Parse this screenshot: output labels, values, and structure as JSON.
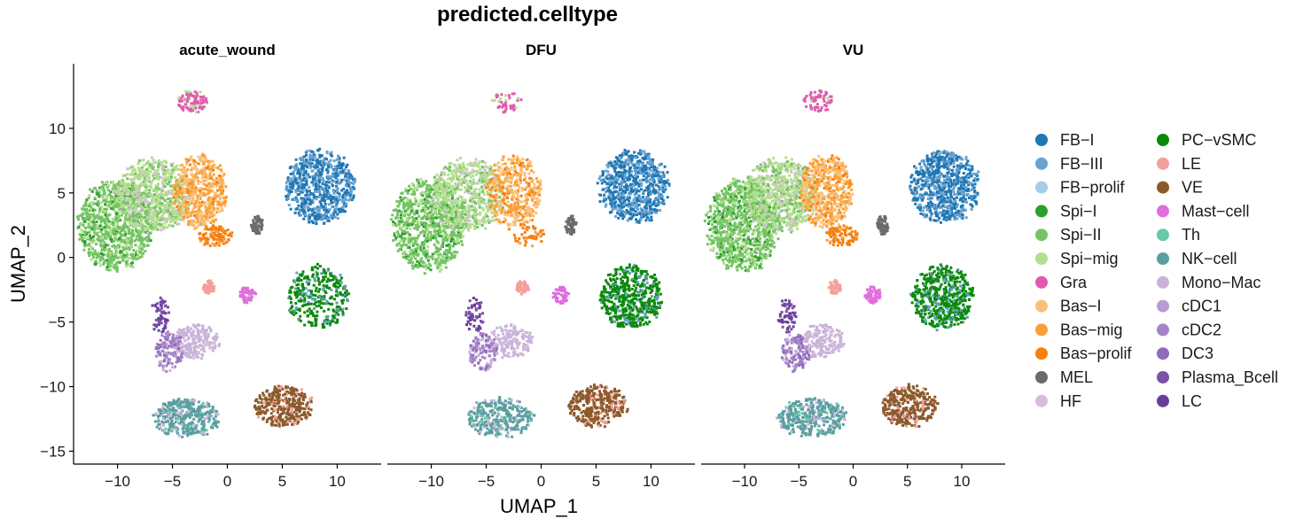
{
  "chart_data": {
    "type": "scatter",
    "title": "predicted.celltype",
    "xlabel": "UMAP_1",
    "ylabel": "UMAP_2",
    "xlim": [
      -14,
      14
    ],
    "ylim": [
      -16,
      15
    ],
    "x_ticks": [
      -10,
      -5,
      0,
      5,
      10
    ],
    "y_ticks": [
      -15,
      -10,
      -5,
      0,
      5,
      10
    ],
    "grid": false,
    "legend_position": "right",
    "facets": [
      "acute_wound",
      "DFU",
      "VU"
    ],
    "legend": [
      {
        "name": "FB−I",
        "color": "#1f77b4"
      },
      {
        "name": "FB−III",
        "color": "#6aa3d0"
      },
      {
        "name": "FB−prolif",
        "color": "#a6cde6"
      },
      {
        "name": "Spi−I",
        "color": "#2ca02c"
      },
      {
        "name": "Spi−II",
        "color": "#74c465"
      },
      {
        "name": "Spi−mig",
        "color": "#b3df8f"
      },
      {
        "name": "Gra",
        "color": "#e05ab0"
      },
      {
        "name": "Bas−I",
        "color": "#f9c07a"
      },
      {
        "name": "Bas−mig",
        "color": "#f9a035"
      },
      {
        "name": "Bas−prolif",
        "color": "#f57f11"
      },
      {
        "name": "MEL",
        "color": "#6b6b6b"
      },
      {
        "name": "HF",
        "color": "#d9bcdb"
      },
      {
        "name": "PC−vSMC",
        "color": "#0a8a0a"
      },
      {
        "name": "LE",
        "color": "#f4a09a"
      },
      {
        "name": "VE",
        "color": "#8b5a2b"
      },
      {
        "name": "Mast−cell",
        "color": "#df6edc"
      },
      {
        "name": "Th",
        "color": "#66c9a6"
      },
      {
        "name": "NK−cell",
        "color": "#5a9ea0"
      },
      {
        "name": "Mono−Mac",
        "color": "#c9b3d9"
      },
      {
        "name": "cDC1",
        "color": "#b89bd1"
      },
      {
        "name": "cDC2",
        "color": "#a583c8"
      },
      {
        "name": "DC3",
        "color": "#8f6bbb"
      },
      {
        "name": "Plasma_Bcell",
        "color": "#7a52aa"
      },
      {
        "name": "LC",
        "color": "#6a3d9a"
      }
    ],
    "clusters": [
      {
        "name": "FB−I",
        "center": [
          8.3,
          5.6
        ],
        "radius": [
          3.4,
          3.0
        ],
        "mix": [
          [
            "FB−I",
            0.6
          ],
          [
            "FB−III",
            0.4
          ]
        ],
        "density": [
          1.0,
          1.0,
          1.0
        ]
      },
      {
        "name": "Spi−II",
        "center": [
          -10.3,
          2.6
        ],
        "radius": [
          3.6,
          3.8
        ],
        "mix": [
          [
            "Spi−II",
            0.65
          ],
          [
            "Spi−I",
            0.15
          ],
          [
            "Spi−mig",
            0.2
          ]
        ],
        "density": [
          1.0,
          0.9,
          1.0
        ]
      },
      {
        "name": "Spi−mig",
        "center": [
          -6.8,
          4.9
        ],
        "radius": [
          3.6,
          3.0
        ],
        "mix": [
          [
            "Spi−mig",
            0.6
          ],
          [
            "Spi−II",
            0.25
          ],
          [
            "HF",
            0.15
          ]
        ],
        "density": [
          1.0,
          0.8,
          1.0
        ]
      },
      {
        "name": "Bas−I",
        "center": [
          -2.6,
          5.2
        ],
        "radius": [
          2.6,
          3.0
        ],
        "mix": [
          [
            "Bas−I",
            0.45
          ],
          [
            "Bas−mig",
            0.4
          ],
          [
            "Bas−prolif",
            0.15
          ]
        ],
        "density": [
          1.0,
          0.8,
          1.0
        ]
      },
      {
        "name": "Bas−prolif",
        "center": [
          -1.2,
          1.8
        ],
        "radius": [
          1.6,
          0.9
        ],
        "mix": [
          [
            "Bas−prolif",
            0.8
          ],
          [
            "Bas−mig",
            0.2
          ]
        ],
        "density": [
          1.0,
          0.5,
          0.9
        ]
      },
      {
        "name": "MEL",
        "center": [
          2.6,
          2.6
        ],
        "radius": [
          0.55,
          0.8
        ],
        "mix": [
          [
            "MEL",
            1.0
          ]
        ],
        "density": [
          1.0,
          1.0,
          1.0
        ]
      },
      {
        "name": "PC−vSMC",
        "center": [
          8.1,
          -3.0
        ],
        "radius": [
          3.0,
          2.6
        ],
        "mix": [
          [
            "PC−vSMC",
            0.75
          ],
          [
            "FB−III",
            0.1
          ],
          [
            "NK−cell",
            0.15
          ]
        ],
        "density": [
          0.6,
          1.0,
          1.0
        ]
      },
      {
        "name": "Gra",
        "center": [
          -3.3,
          12.2
        ],
        "radius": [
          1.5,
          0.9
        ],
        "mix": [
          [
            "Gra",
            0.8
          ],
          [
            "Spi−mig",
            0.2
          ]
        ],
        "density": [
          1.0,
          0.5,
          0.7
        ]
      },
      {
        "name": "LE",
        "center": [
          -1.8,
          -2.2
        ],
        "radius": [
          0.6,
          0.55
        ],
        "mix": [
          [
            "LE",
            1.0
          ]
        ],
        "density": [
          1.0,
          1.0,
          1.0
        ]
      },
      {
        "name": "Mast−cell",
        "center": [
          1.7,
          -2.8
        ],
        "radius": [
          0.8,
          0.75
        ],
        "mix": [
          [
            "Mast−cell",
            1.0
          ]
        ],
        "density": [
          1.0,
          1.0,
          1.0
        ]
      },
      {
        "name": "Mono−Mac",
        "center": [
          -3.0,
          -6.4
        ],
        "radius": [
          2.2,
          1.4
        ],
        "mix": [
          [
            "Mono−Mac",
            0.85
          ],
          [
            "HF",
            0.15
          ]
        ],
        "density": [
          1.0,
          0.8,
          0.9
        ]
      },
      {
        "name": "cDC2",
        "center": [
          -5.4,
          -7.2
        ],
        "radius": [
          1.4,
          1.6
        ],
        "mix": [
          [
            "cDC2",
            0.5
          ],
          [
            "DC3",
            0.3
          ],
          [
            "Mono−Mac",
            0.2
          ]
        ],
        "density": [
          1.0,
          0.8,
          0.9
        ]
      },
      {
        "name": "LC",
        "center": [
          -6.2,
          -4.4
        ],
        "radius": [
          0.9,
          1.5
        ],
        "mix": [
          [
            "LC",
            0.5
          ],
          [
            "Plasma_Bcell",
            0.5
          ]
        ],
        "density": [
          0.6,
          0.6,
          0.6
        ]
      },
      {
        "name": "NK−cell",
        "center": [
          -3.9,
          -12.3
        ],
        "radius": [
          3.3,
          1.6
        ],
        "mix": [
          [
            "NK−cell",
            0.75
          ],
          [
            "Th",
            0.1
          ],
          [
            "Mono−Mac",
            0.15
          ]
        ],
        "density": [
          1.0,
          0.9,
          1.0
        ]
      },
      {
        "name": "VE",
        "center": [
          5.0,
          -11.4
        ],
        "radius": [
          2.8,
          1.7
        ],
        "mix": [
          [
            "VE",
            0.85
          ],
          [
            "LE",
            0.15
          ]
        ],
        "density": [
          1.0,
          1.0,
          1.0
        ]
      }
    ]
  }
}
